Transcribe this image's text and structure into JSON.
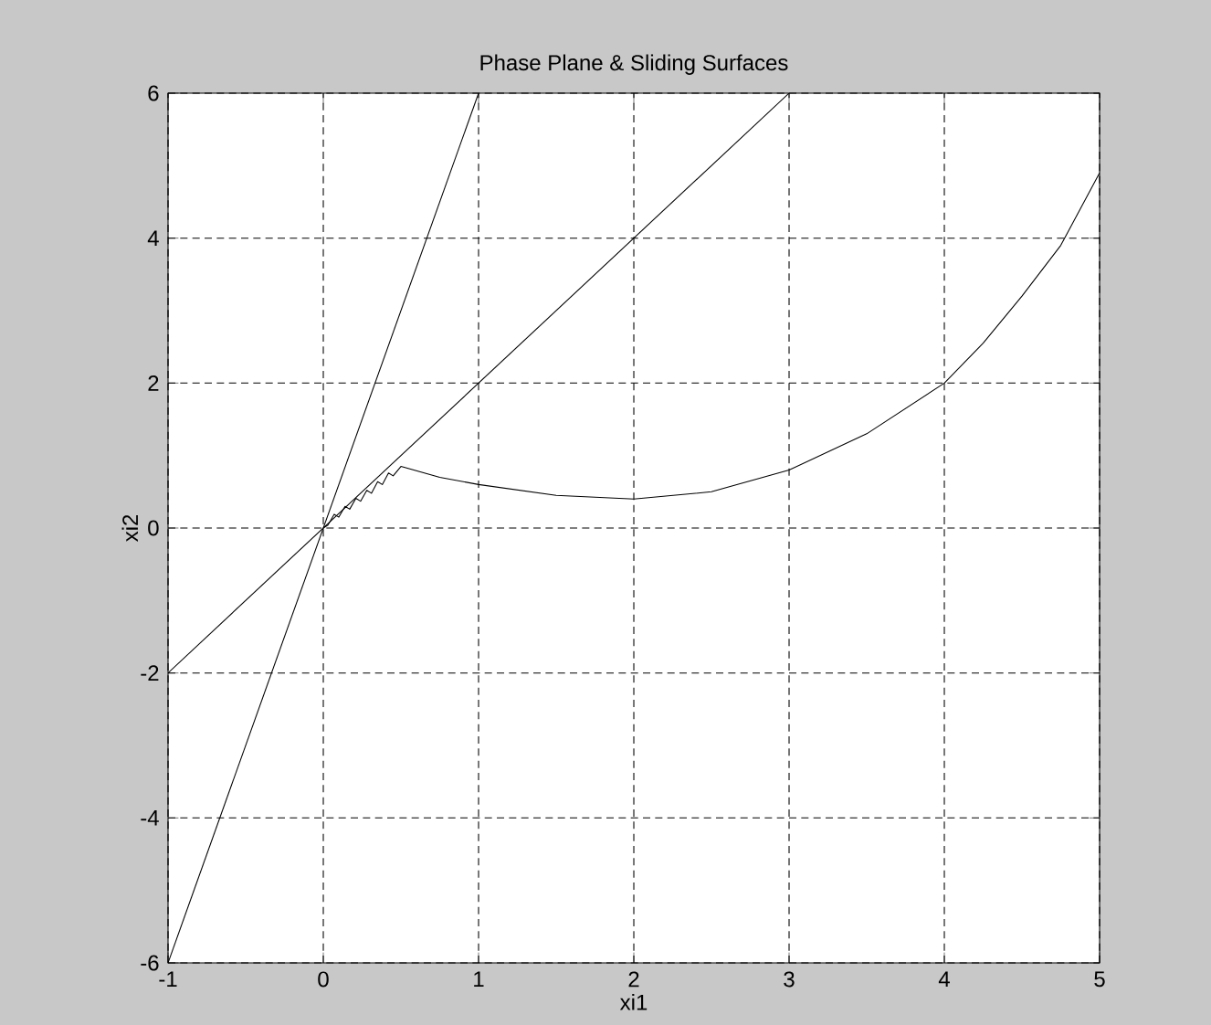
{
  "chart_data": {
    "type": "line",
    "title": "Phase Plane & Sliding Surfaces",
    "xlabel": "xi1",
    "ylabel": "xi2",
    "xlim": [
      -1,
      5
    ],
    "ylim": [
      -6,
      6
    ],
    "xticks": [
      -1,
      0,
      1,
      2,
      3,
      4,
      5
    ],
    "yticks": [
      -6,
      -4,
      -2,
      0,
      2,
      4,
      6
    ],
    "grid": true,
    "line_style": "solid",
    "series": [
      {
        "color": "#000000",
        "x": [
          -1,
          1
        ],
        "values": [
          -6,
          6
        ]
      },
      {
        "color": "#000000",
        "x": [
          -1,
          3
        ],
        "values": [
          -2,
          6
        ]
      },
      {
        "color": "#000000",
        "x": [
          5,
          4.75,
          4.5,
          4.25,
          4,
          3.5,
          3,
          2.5,
          2,
          1.5,
          1,
          0.75,
          0.5,
          0.45,
          0.42,
          0.38,
          0.35,
          0.31,
          0.28,
          0.24,
          0.21,
          0.17,
          0.14,
          0.1,
          0.07,
          0.03,
          0
        ],
        "values": [
          4.9,
          3.9,
          3.2,
          2.55,
          2.0,
          1.3,
          0.8,
          0.5,
          0.4,
          0.45,
          0.6,
          0.7,
          0.85,
          0.72,
          0.76,
          0.6,
          0.64,
          0.48,
          0.52,
          0.37,
          0.41,
          0.26,
          0.3,
          0.15,
          0.19,
          0.04,
          0
        ]
      }
    ]
  }
}
